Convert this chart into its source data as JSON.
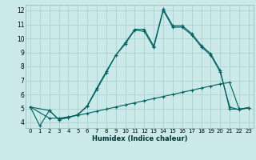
{
  "xlabel": "Humidex (Indice chaleur)",
  "bg_color": "#cce9e9",
  "grid_color": "#aed4d4",
  "line_color": "#006060",
  "xlim": [
    -0.5,
    23.5
  ],
  "ylim": [
    3.6,
    12.4
  ],
  "xtick_labels": [
    "0",
    "1",
    "2",
    "3",
    "4",
    "5",
    "6",
    "7",
    "8",
    "9",
    "10",
    "11",
    "12",
    "13",
    "14",
    "15",
    "16",
    "17",
    "18",
    "19",
    "20",
    "21",
    "22",
    "23"
  ],
  "xtick_vals": [
    0,
    1,
    2,
    3,
    4,
    5,
    6,
    7,
    8,
    9,
    10,
    11,
    12,
    13,
    14,
    15,
    16,
    17,
    18,
    19,
    20,
    21,
    22,
    23
  ],
  "ytick_vals": [
    4,
    5,
    6,
    7,
    8,
    9,
    10,
    11,
    12
  ],
  "line1_x": [
    0,
    1,
    2,
    3,
    4,
    5,
    6,
    7,
    8,
    9,
    10,
    11,
    12,
    13,
    14,
    15,
    16,
    17,
    18,
    19,
    20,
    21,
    22,
    23
  ],
  "line1_y": [
    5.1,
    3.75,
    4.85,
    4.2,
    4.35,
    4.55,
    5.2,
    6.45,
    7.65,
    8.8,
    9.7,
    10.65,
    10.65,
    9.45,
    12.1,
    10.9,
    10.9,
    10.35,
    9.5,
    8.9,
    7.7,
    4.95,
    4.95,
    5.05
  ],
  "line2_x": [
    0,
    2,
    3,
    4,
    5,
    6,
    7,
    8,
    9,
    10,
    11,
    12,
    13,
    14,
    15,
    16,
    17,
    18,
    19,
    20,
    21,
    22,
    23
  ],
  "line2_y": [
    5.1,
    4.85,
    4.2,
    4.35,
    4.55,
    5.15,
    6.35,
    7.55,
    8.8,
    9.6,
    10.6,
    10.5,
    9.35,
    12.0,
    10.8,
    10.8,
    10.25,
    9.4,
    8.8,
    7.6,
    5.1,
    4.9,
    5.05
  ],
  "line3_x": [
    0,
    2,
    3,
    4,
    5,
    6,
    7,
    8,
    9,
    10,
    11,
    12,
    13,
    14,
    15,
    16,
    17,
    18,
    19,
    20,
    21,
    22,
    23
  ],
  "line3_y": [
    5.1,
    4.3,
    4.3,
    4.4,
    4.5,
    4.65,
    4.8,
    4.95,
    5.1,
    5.25,
    5.4,
    5.55,
    5.7,
    5.85,
    6.0,
    6.15,
    6.3,
    6.45,
    6.6,
    6.75,
    6.85,
    4.95,
    5.05
  ]
}
